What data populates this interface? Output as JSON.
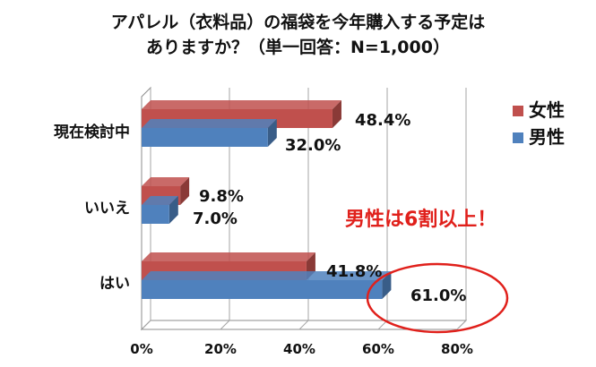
{
  "chart_data": {
    "type": "bar",
    "orientation": "horizontal",
    "title_lines": [
      "アパレル（衣料品）の福袋を今年購入する予定は",
      "ありますか？（単一回答：N=1,000）"
    ],
    "categories": [
      "現在検討中",
      "いいえ",
      "はい"
    ],
    "series": [
      {
        "name": "女性",
        "values": [
          48.4,
          9.8,
          41.8
        ],
        "color": "#c0504d"
      },
      {
        "name": "男性",
        "values": [
          32.0,
          7.0,
          61.0
        ],
        "color": "#4f81bd"
      }
    ],
    "value_labels": {
      "女性": [
        "48.4%",
        "9.8%",
        "41.8%"
      ],
      "男性": [
        "32.0%",
        "7.0%",
        "61.0%"
      ]
    },
    "x_ticks": [
      "0%",
      "20%",
      "40%",
      "60%",
      "80%"
    ],
    "xlim": [
      0,
      80
    ],
    "grid": "vertical",
    "legend_position": "top-right",
    "annotation": "男性は6割以上！",
    "annotation_color": "#e0201b",
    "highlight": {
      "category": "はい",
      "series": "男性",
      "shape": "ellipse",
      "color": "#e0201b"
    }
  }
}
